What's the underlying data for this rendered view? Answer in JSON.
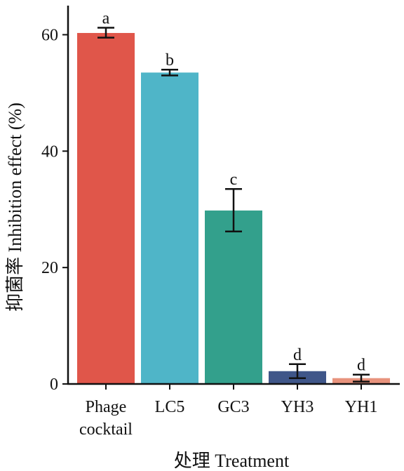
{
  "chart_data": {
    "type": "bar",
    "xlabel": "处理  Treatment",
    "ylabel": "抑菌率  Inhibition effect (%)",
    "ylim": [
      0,
      65
    ],
    "yticks": [
      0,
      20,
      40,
      60
    ],
    "grid": false,
    "categories": [
      [
        "Phage",
        "cocktail"
      ],
      [
        "LC5"
      ],
      [
        "GC3"
      ],
      [
        "YH3"
      ],
      [
        "YH1"
      ]
    ],
    "values": [
      60.3,
      53.5,
      29.8,
      2.2,
      1.0
    ],
    "error_low": [
      59.5,
      53.0,
      26.2,
      1.0,
      0.4
    ],
    "error_high": [
      61.2,
      54.0,
      33.5,
      3.4,
      1.6
    ],
    "significance": [
      "a",
      "b",
      "c",
      "d",
      "d"
    ],
    "colors": [
      "#E0564A",
      "#4FB5C8",
      "#33A08C",
      "#3F5689",
      "#E8937D"
    ]
  }
}
